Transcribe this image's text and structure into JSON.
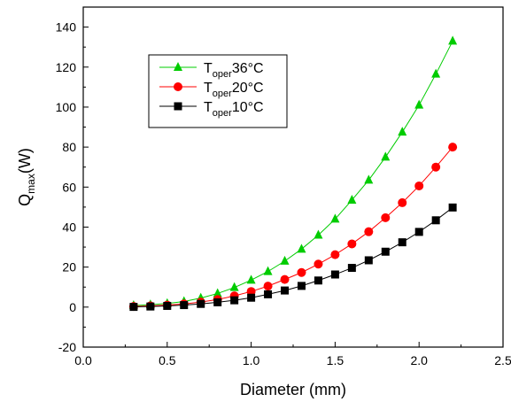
{
  "chart_data": {
    "type": "line",
    "xlabel": "Diameter (mm)",
    "ylabel_main": "Q",
    "ylabel_sub": "max",
    "ylabel_unit": "(W)",
    "xlim": [
      0.0,
      2.5
    ],
    "ylim": [
      -20,
      150
    ],
    "x_ticks": [
      0.0,
      0.5,
      1.0,
      1.5,
      2.0,
      2.5
    ],
    "x_tick_labels": [
      "0.0",
      "0.5",
      "1.0",
      "1.5",
      "2.0",
      "2.5"
    ],
    "y_ticks": [
      -20,
      0,
      20,
      40,
      60,
      80,
      100,
      120,
      140
    ],
    "y_tick_labels": [
      "-20",
      "0",
      "20",
      "40",
      "60",
      "80",
      "100",
      "120",
      "140"
    ],
    "grid": false,
    "legend_position": "top-left",
    "x": [
      0.3,
      0.4,
      0.5,
      0.6,
      0.7,
      0.8,
      0.9,
      1.0,
      1.1,
      1.2,
      1.3,
      1.4,
      1.5,
      1.6,
      1.7,
      1.8,
      1.9,
      2.0,
      2.1,
      2.2
    ],
    "series": [
      {
        "name_main": "T",
        "name_sub": "oper",
        "name_rest": "36°C",
        "marker": "triangle",
        "color": "#00cc00",
        "values": [
          0.8,
          1.2,
          1.8,
          2.8,
          4.5,
          6.8,
          9.8,
          13.5,
          17.8,
          23.0,
          29.0,
          36.0,
          44.0,
          53.5,
          63.5,
          75.0,
          87.5,
          101.0,
          116.5,
          133.0
        ]
      },
      {
        "name_main": "T",
        "name_sub": "oper",
        "name_rest": "20°C",
        "marker": "circle",
        "color": "#ff0000",
        "values": [
          0.3,
          0.6,
          1.0,
          1.6,
          2.5,
          3.8,
          5.6,
          7.8,
          10.5,
          13.8,
          17.3,
          21.5,
          26.2,
          31.6,
          37.7,
          44.7,
          52.2,
          60.6,
          70.0,
          80.0
        ]
      },
      {
        "name_main": "T",
        "name_sub": "oper",
        "name_rest": "10°C",
        "marker": "square",
        "color": "#000000",
        "values": [
          0.1,
          0.3,
          0.6,
          1.0,
          1.6,
          2.4,
          3.4,
          4.7,
          6.4,
          8.3,
          10.6,
          13.3,
          16.3,
          19.6,
          23.4,
          27.7,
          32.4,
          37.6,
          43.4,
          49.8
        ]
      }
    ]
  }
}
